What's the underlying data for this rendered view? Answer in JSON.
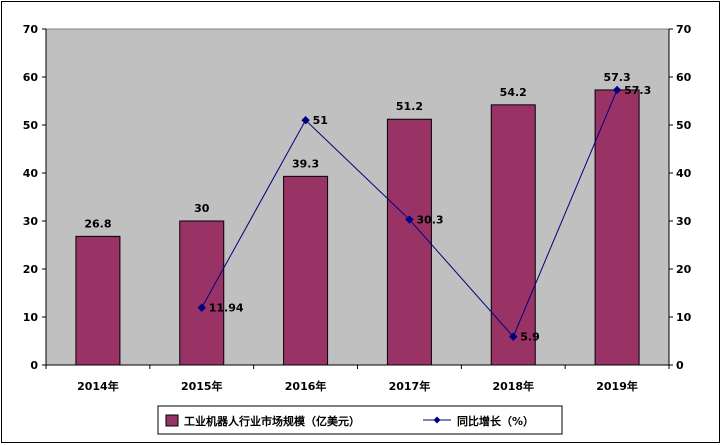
{
  "chart_data": {
    "type": "bar",
    "categories": [
      "2014年",
      "2015年",
      "2016年",
      "2017年",
      "2018年",
      "2019年"
    ],
    "series": [
      {
        "name": "工业机器人行业市场规模（亿美元）",
        "type": "bar",
        "axis": "left",
        "values": [
          26.8,
          30,
          39.3,
          51.2,
          54.2,
          57.3
        ],
        "labels": [
          "26.8",
          "30",
          "39.3",
          "51.2",
          "54.2",
          "57.3"
        ],
        "color": "#993366"
      },
      {
        "name": "同比增长（%）",
        "type": "line",
        "axis": "right",
        "values": [
          null,
          11.94,
          51,
          30.3,
          5.9,
          57.3
        ],
        "labels": [
          "",
          "11.94",
          "51",
          "30.3",
          "5.9",
          "57.3"
        ],
        "color": "#000080"
      }
    ],
    "y_left": {
      "ylim": [
        0,
        70
      ],
      "ticks": [
        "0",
        "10",
        "20",
        "30",
        "40",
        "50",
        "60",
        "70"
      ]
    },
    "y_right": {
      "ylim": [
        0,
        70
      ],
      "ticks": [
        "0",
        "10",
        "20",
        "30",
        "40",
        "50",
        "60",
        "70"
      ]
    },
    "plot_background": "#c0c0c0",
    "grid": false,
    "legend_position": "bottom"
  }
}
